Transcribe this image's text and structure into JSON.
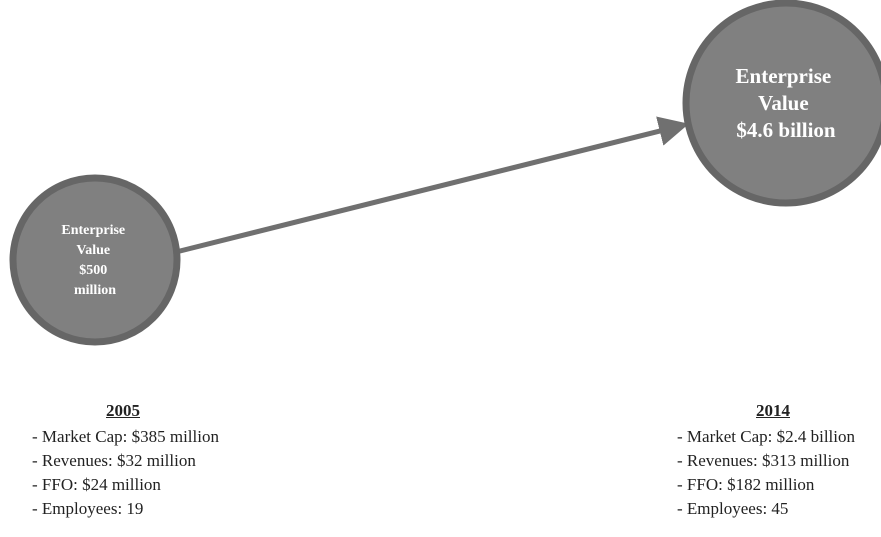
{
  "colors": {
    "circle_fill": "#808080",
    "circle_stroke": "#666666",
    "arrow": "#707070",
    "circle_text": "#ffffff"
  },
  "start_node": {
    "lines": [
      "Enterprise",
      "Value",
      "$500",
      "million"
    ]
  },
  "end_node": {
    "lines": [
      "Enterprise",
      "Value",
      "$4.6 billion"
    ]
  },
  "blocks": [
    {
      "year": "2005",
      "items": [
        "- Market Cap: $385 million",
        "- Revenues: $32 million",
        "- FFO: $24 million",
        "- Employees: 19"
      ]
    },
    {
      "year": "2014",
      "items": [
        "- Market Cap: $2.4 billion",
        "- Revenues: $313 million",
        "- FFO: $182 million",
        "- Employees: 45"
      ]
    }
  ]
}
